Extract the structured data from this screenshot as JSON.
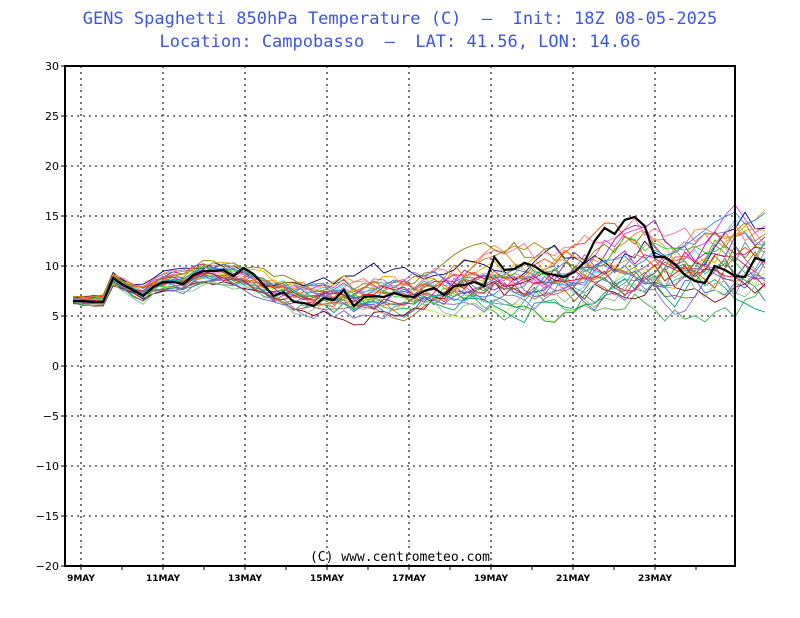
{
  "header": {
    "title_line1": "GENS Spaghetti 850hPa Temperature (C)  –  Init: 18Z 08-05-2025",
    "title_line2": "Location: Campobasso  –  LAT: 41.56, LON: 14.66"
  },
  "footer": {
    "copyright": "(C) www.centrometeo.com"
  },
  "chart_data": {
    "type": "line",
    "title": "GENS Spaghetti 850hPa Temperature (C)  –  Init: 18Z 08-05-2025",
    "subtitle": "Location: Campobasso  –  LAT: 41.56, LON: 14.66",
    "xlabel": "",
    "ylabel": "",
    "ylim": [
      -20,
      30
    ],
    "yticks": [
      -20,
      -15,
      -10,
      -5,
      0,
      5,
      10,
      15,
      20,
      25,
      30
    ],
    "ytick_labels": [
      "−20",
      "−15",
      "−10",
      "−5",
      "0",
      "5",
      "10",
      "15",
      "20",
      "25",
      "30"
    ],
    "xlim": [
      "2025-05-08T18Z",
      "2025-05-24T18Z"
    ],
    "xticks": [
      "9MAY",
      "11MAY",
      "13MAY",
      "15MAY",
      "17MAY",
      "19MAY",
      "21MAY",
      "23MAY"
    ],
    "x_step_hours": 6,
    "grid": true,
    "legend": "none",
    "control_series": {
      "color": "#000000",
      "values": [
        6.5,
        6.5,
        6.4,
        6.4,
        8.8,
        8.1,
        7.6,
        7.0,
        7.9,
        8.4,
        8.4,
        8.2,
        9.1,
        9.5,
        9.5,
        9.6,
        9.0,
        9.8,
        9.2,
        8.1,
        7.0,
        7.4,
        6.4,
        6.3,
        6.0,
        6.8,
        6.6,
        7.6,
        6.0,
        6.9,
        7.0,
        6.9,
        7.3,
        7.0,
        6.9,
        7.5,
        7.8,
        7.1,
        8.0,
        8.1,
        8.4,
        8.0,
        10.9,
        9.6,
        9.7,
        10.3,
        10.0,
        9.3,
        9.1,
        8.9,
        9.4,
        10.4,
        12.5,
        13.8,
        13.2,
        14.6,
        14.9,
        14.0,
        10.9,
        10.9,
        10.2,
        9.1,
        8.5,
        8.3,
        10.0,
        9.6,
        9.0,
        8.9,
        10.8,
        10.5
      ]
    },
    "ensemble_colors": [
      "#e6194b",
      "#3cb44b",
      "#4363d8",
      "#f58231",
      "#911eb4",
      "#42d4f4",
      "#f032e6",
      "#bfef45",
      "#469990",
      "#9a6324",
      "#800000",
      "#808000",
      "#000075",
      "#e6a700",
      "#ff6f91",
      "#00a86b",
      "#7b68ee",
      "#cd5c5c",
      "#20b2aa",
      "#daa520",
      "#9370db",
      "#2e8b57",
      "#ff4500",
      "#1e90ff",
      "#c71585",
      "#8fbc8f",
      "#b8860b",
      "#6a5acd",
      "#dc143c",
      "#32cd32"
    ],
    "ensemble_mean": [
      6.6,
      6.5,
      6.5,
      6.5,
      8.6,
      8.0,
      7.5,
      7.2,
      7.9,
      8.3,
      8.5,
      8.4,
      8.9,
      9.3,
      9.4,
      9.3,
      9.0,
      8.9,
      8.6,
      8.1,
      7.6,
      7.4,
      7.1,
      7.0,
      6.8,
      6.9,
      6.8,
      7.1,
      6.8,
      6.9,
      7.0,
      7.1,
      7.2,
      7.1,
      7.2,
      7.5,
      7.6,
      7.6,
      7.9,
      8.0,
      8.1,
      8.2,
      8.6,
      8.5,
      8.6,
      8.7,
      8.8,
      8.6,
      8.7,
      8.8,
      8.9,
      9.2,
      9.5,
      9.8,
      9.9,
      10.1,
      10.2,
      10.2,
      10.1,
      10.0,
      10.0,
      9.9,
      9.9,
      10.0,
      10.3,
      10.5,
      10.7,
      10.8,
      10.9,
      11.0
    ],
    "ensemble_spread_note": "30 perturbed members spread roughly +/-1 C early, widening to +/-4 C by 23-24 May",
    "ensemble_member_count": 30
  }
}
